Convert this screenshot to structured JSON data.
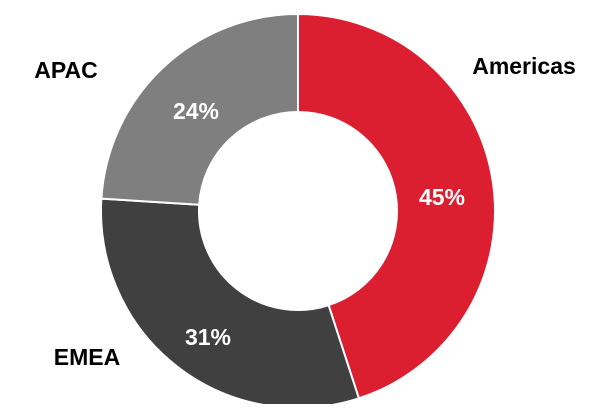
{
  "chart_data": {
    "type": "pie",
    "variant": "donut",
    "categories": [
      "Americas",
      "EMEA",
      "APAC"
    ],
    "values": [
      45,
      31,
      24
    ],
    "value_labels": [
      "45%",
      "31%",
      "24%"
    ],
    "colors": [
      "#dc1f30",
      "#404040",
      "#7f7f7f"
    ],
    "title": "",
    "legend": "none"
  }
}
